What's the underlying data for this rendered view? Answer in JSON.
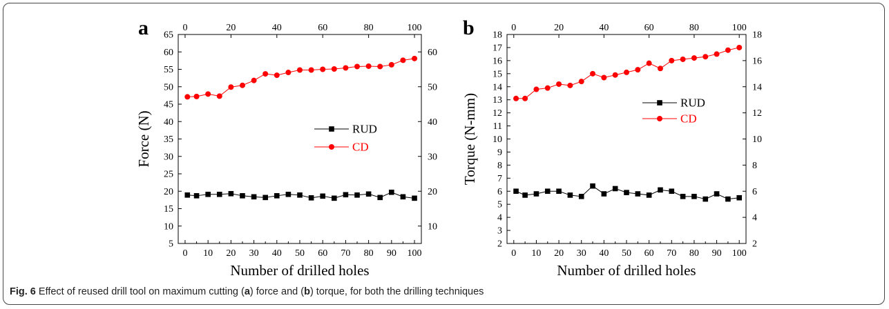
{
  "caption": {
    "label": "Fig. 6",
    "part1": " Effect of reused drill tool on maximum cutting (",
    "ref_a": "a",
    "part2": ") force and (",
    "ref_b": "b",
    "part3": ") torque, for both the drilling techniques"
  },
  "colors": {
    "rud": "#000000",
    "cd": "#ff0000"
  },
  "chart_data": [
    {
      "type": "line",
      "panel_label": "a",
      "xlabel": "Number of drilled holes",
      "ylabel": "Force (N)",
      "xlim": [
        -3,
        103
      ],
      "ylim": [
        5,
        65
      ],
      "x_ticks": [
        0,
        10,
        20,
        30,
        40,
        50,
        60,
        70,
        80,
        90,
        100
      ],
      "x_top_ticks": [
        0,
        20,
        40,
        60,
        80,
        100
      ],
      "y_ticks": [
        5,
        10,
        15,
        20,
        25,
        30,
        35,
        40,
        45,
        50,
        55,
        60,
        65
      ],
      "y_right_ticks": [
        10,
        20,
        30,
        40,
        50,
        60
      ],
      "legend_position": "center-right",
      "x": [
        1,
        5,
        10,
        15,
        20,
        25,
        30,
        35,
        40,
        45,
        50,
        55,
        60,
        65,
        70,
        75,
        80,
        85,
        90,
        95,
        100
      ],
      "series": [
        {
          "name": "RUD",
          "marker": "square",
          "color": "#000000",
          "values": [
            18.9,
            18.7,
            19.1,
            19.1,
            19.3,
            18.7,
            18.4,
            18.2,
            18.7,
            19.1,
            18.9,
            18.1,
            18.6,
            18.0,
            19.0,
            18.9,
            19.2,
            18.2,
            19.7,
            18.4,
            18.0
          ]
        },
        {
          "name": "CD",
          "marker": "circle",
          "color": "#ff0000",
          "values": [
            47.1,
            47.2,
            47.9,
            47.3,
            49.9,
            50.4,
            51.8,
            53.7,
            53.3,
            54.1,
            54.8,
            54.8,
            55.0,
            55.1,
            55.4,
            55.8,
            55.9,
            55.8,
            56.3,
            57.6,
            58.1
          ]
        }
      ]
    },
    {
      "type": "line",
      "panel_label": "b",
      "xlabel": "Number of drilled holes",
      "ylabel": "Torque (N-mm)",
      "xlim": [
        -3,
        103
      ],
      "ylim": [
        2,
        18
      ],
      "x_ticks": [
        0,
        10,
        20,
        30,
        40,
        50,
        60,
        70,
        80,
        90,
        100
      ],
      "x_top_ticks": [
        0,
        20,
        40,
        60,
        80,
        100
      ],
      "y_ticks": [
        2,
        3,
        4,
        5,
        6,
        7,
        8,
        9,
        10,
        11,
        12,
        13,
        14,
        15,
        16,
        17,
        18
      ],
      "y_right_ticks": [
        2,
        4,
        6,
        8,
        10,
        12,
        14,
        16,
        18
      ],
      "legend_position": "center-right",
      "x": [
        1,
        5,
        10,
        15,
        20,
        25,
        30,
        35,
        40,
        45,
        50,
        55,
        60,
        65,
        70,
        75,
        80,
        85,
        90,
        95,
        100
      ],
      "series": [
        {
          "name": "RUD",
          "marker": "square",
          "color": "#000000",
          "values": [
            6.0,
            5.7,
            5.8,
            6.0,
            6.0,
            5.7,
            5.6,
            6.4,
            5.8,
            6.2,
            5.9,
            5.8,
            5.7,
            6.1,
            6.0,
            5.6,
            5.6,
            5.4,
            5.8,
            5.4,
            5.5
          ]
        },
        {
          "name": "CD",
          "marker": "circle",
          "color": "#ff0000",
          "values": [
            13.1,
            13.1,
            13.8,
            13.9,
            14.2,
            14.1,
            14.4,
            15.0,
            14.7,
            14.9,
            15.1,
            15.3,
            15.8,
            15.4,
            16.0,
            16.1,
            16.2,
            16.3,
            16.5,
            16.8,
            17.0
          ]
        }
      ]
    }
  ]
}
